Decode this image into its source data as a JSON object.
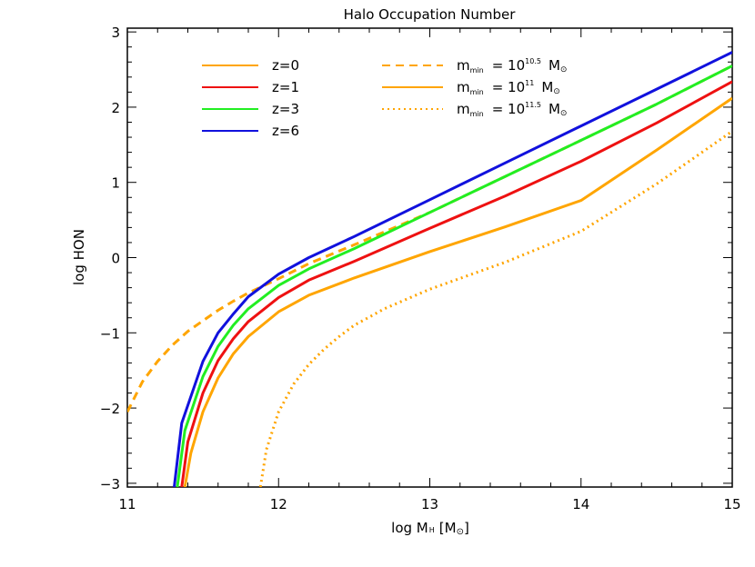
{
  "chart_data": {
    "type": "line",
    "title": "Halo Occupation Number",
    "xlabel": "log M",
    "xlabel_sub": "H",
    "xlabel_unit_open": "[M",
    "xlabel_unit_close": "]",
    "ylabel": "log HON",
    "xlim": [
      11,
      15
    ],
    "ylim": [
      -3.05,
      3.05
    ],
    "xticks": [
      11,
      12,
      13,
      14,
      15
    ],
    "xtick_labels": [
      "11",
      "12",
      "13",
      "14",
      "15"
    ],
    "yticks": [
      -3,
      -2,
      -1,
      0,
      1,
      2,
      3
    ],
    "ytick_labels": [
      "−3",
      "−2",
      "−1",
      "0",
      "1",
      "2",
      "3"
    ],
    "grid": false,
    "colors": {
      "z0": "#ffa500",
      "z1": "#ee1111",
      "z3": "#22ee22",
      "z6": "#1111dd"
    },
    "series": [
      {
        "name": "z=0",
        "color": "#ffa500",
        "dash": "solid",
        "x": [
          11.38,
          11.42,
          11.5,
          11.6,
          11.7,
          11.8,
          12.0,
          12.2,
          12.5,
          13.0,
          13.5,
          14.0,
          14.5,
          15.0
        ],
        "y": [
          -3.05,
          -2.6,
          -2.05,
          -1.6,
          -1.28,
          -1.05,
          -0.72,
          -0.5,
          -0.27,
          0.08,
          0.41,
          0.76,
          1.43,
          2.12
        ]
      },
      {
        "name": "z=1",
        "color": "#ee1111",
        "dash": "solid",
        "x": [
          11.36,
          11.4,
          11.5,
          11.6,
          11.7,
          11.8,
          12.0,
          12.2,
          12.5,
          13.0,
          13.5,
          14.0,
          14.5,
          15.0
        ],
        "y": [
          -3.05,
          -2.45,
          -1.8,
          -1.37,
          -1.08,
          -0.85,
          -0.53,
          -0.3,
          -0.05,
          0.39,
          0.82,
          1.28,
          1.79,
          2.34
        ]
      },
      {
        "name": "z=3",
        "color": "#22ee22",
        "dash": "solid",
        "x": [
          11.33,
          11.38,
          11.5,
          11.6,
          11.7,
          11.8,
          12.0,
          12.2,
          12.5,
          13.0,
          13.5,
          14.0,
          14.5,
          15.0
        ],
        "y": [
          -3.05,
          -2.3,
          -1.58,
          -1.18,
          -0.9,
          -0.68,
          -0.37,
          -0.15,
          0.12,
          0.6,
          1.08,
          1.56,
          2.04,
          2.55
        ]
      },
      {
        "name": "z=6",
        "color": "#1111dd",
        "dash": "solid",
        "x": [
          11.31,
          11.36,
          11.5,
          11.6,
          11.7,
          11.8,
          12.0,
          12.2,
          12.5,
          13.0,
          13.5,
          14.0,
          14.5,
          15.0
        ],
        "y": [
          -3.05,
          -2.2,
          -1.38,
          -1.0,
          -0.75,
          -0.52,
          -0.22,
          0.0,
          0.28,
          0.77,
          1.26,
          1.75,
          2.24,
          2.73
        ]
      },
      {
        "name": "",
        "color": "#ffa500",
        "dash": "dashed",
        "x": [
          11.0,
          11.1,
          11.2,
          11.3,
          11.4,
          11.5,
          11.6,
          11.7,
          11.8,
          12.0,
          12.2,
          12.5,
          13.0,
          13.5,
          14.0,
          14.5,
          15.0
        ],
        "y": [
          -2.05,
          -1.65,
          -1.38,
          -1.16,
          -0.98,
          -0.84,
          -0.7,
          -0.58,
          -0.47,
          -0.28,
          -0.08,
          0.17,
          0.6,
          1.08,
          1.56,
          2.04,
          2.55
        ]
      },
      {
        "name": "",
        "color": "#ffa500",
        "dash": "dotted",
        "x": [
          11.88,
          11.92,
          12.0,
          12.1,
          12.2,
          12.3,
          12.4,
          12.5,
          12.7,
          13.0,
          13.5,
          14.0,
          14.5,
          15.0
        ],
        "y": [
          -3.05,
          -2.55,
          -2.05,
          -1.68,
          -1.42,
          -1.22,
          -1.05,
          -0.9,
          -0.68,
          -0.42,
          -0.06,
          0.35,
          0.98,
          1.68
        ]
      }
    ],
    "legend": {
      "placement": "top-left",
      "left_entries": [
        {
          "label": "z=0",
          "color": "#ffa500"
        },
        {
          "label": "z=1",
          "color": "#ee1111"
        },
        {
          "label": "z=3",
          "color": "#22ee22"
        },
        {
          "label": "z=6",
          "color": "#1111dd"
        }
      ],
      "right_entries": [
        {
          "style": "dashed",
          "color": "#ffa500",
          "m": "m",
          "sub": "min",
          "eq": "= 10",
          "exp": "10.5",
          "unit": "M"
        },
        {
          "style": "solid",
          "color": "#ffa500",
          "m": "m",
          "sub": "min",
          "eq": "= 10",
          "exp": "11",
          "unit": "M"
        },
        {
          "style": "dotted",
          "color": "#ffa500",
          "m": "m",
          "sub": "min",
          "eq": "= 10",
          "exp": "11.5",
          "unit": "M"
        }
      ]
    }
  }
}
